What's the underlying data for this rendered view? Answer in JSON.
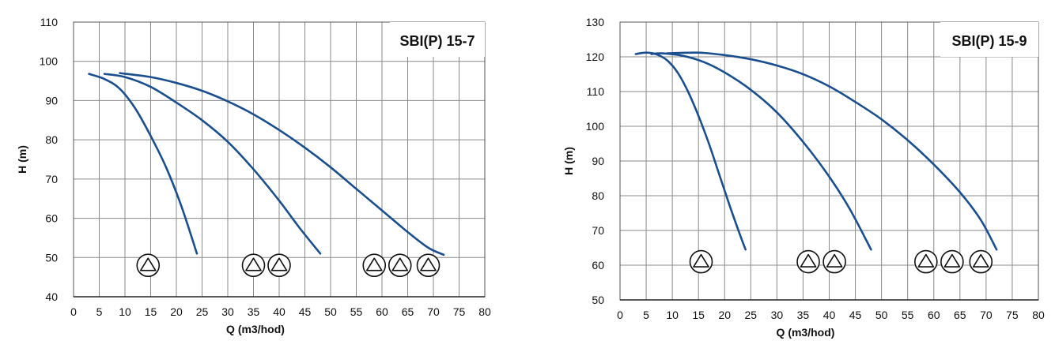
{
  "chart_data": [
    {
      "type": "line",
      "title": "SBI(P) 15-7",
      "xlabel": "Q (m3/hod)",
      "ylabel": "H (m)",
      "xlim": [
        0,
        80
      ],
      "ylim": [
        40,
        110
      ],
      "x_ticks": [
        "0",
        "5",
        "10",
        "15",
        "20",
        "25",
        "30",
        "35",
        "40",
        "45",
        "50",
        "55",
        "60",
        "65",
        "70",
        "75",
        "80"
      ],
      "y_ticks": [
        "40",
        "50",
        "60",
        "70",
        "80",
        "90",
        "100",
        "110"
      ],
      "grid": true,
      "line_color": "#1a4f8f",
      "series": [
        {
          "points": [
            [
              3,
              96.8
            ],
            [
              6,
              95.5
            ],
            [
              9,
              93
            ],
            [
              12,
              88
            ],
            [
              15,
              81
            ],
            [
              18,
              73
            ],
            [
              21,
              63
            ],
            [
              24,
              51
            ]
          ]
        },
        {
          "points": [
            [
              6,
              96.8
            ],
            [
              10,
              96
            ],
            [
              15,
              93.5
            ],
            [
              20,
              89.5
            ],
            [
              25,
              85
            ],
            [
              30,
              79.5
            ],
            [
              35,
              72.5
            ],
            [
              40,
              64.5
            ],
            [
              44,
              57.5
            ],
            [
              48,
              51
            ]
          ]
        },
        {
          "points": [
            [
              9,
              97
            ],
            [
              15,
              96
            ],
            [
              20,
              94.5
            ],
            [
              25,
              92.5
            ],
            [
              30,
              89.8
            ],
            [
              35,
              86.5
            ],
            [
              40,
              82.5
            ],
            [
              45,
              78
            ],
            [
              50,
              73
            ],
            [
              55,
              67.5
            ],
            [
              60,
              62
            ],
            [
              65,
              56.5
            ],
            [
              69,
              52.5
            ],
            [
              72,
              50.7
            ]
          ]
        }
      ],
      "pump_symbol_groups": [
        {
          "x": [
            14.5
          ]
        },
        {
          "x": [
            35,
            40
          ]
        },
        {
          "x": [
            58.5,
            63.5,
            69
          ]
        }
      ],
      "pump_symbol_y": 48
    },
    {
      "type": "line",
      "title": "SBI(P) 15-9",
      "xlabel": "Q (m3/hod)",
      "ylabel": "H (m)",
      "xlim": [
        0,
        80
      ],
      "ylim": [
        50,
        130
      ],
      "x_ticks": [
        "0",
        "5",
        "10",
        "15",
        "20",
        "25",
        "30",
        "35",
        "40",
        "45",
        "50",
        "55",
        "60",
        "65",
        "70",
        "75",
        "80"
      ],
      "y_ticks": [
        "50",
        "60",
        "70",
        "80",
        "90",
        "100",
        "110",
        "120",
        "130"
      ],
      "grid": true,
      "line_color": "#1a4f8f",
      "series": [
        {
          "points": [
            [
              3,
              120.8
            ],
            [
              5,
              121.2
            ],
            [
              7,
              120.7
            ],
            [
              9,
              119
            ],
            [
              11,
              115.5
            ],
            [
              13,
              110
            ],
            [
              15,
              103
            ],
            [
              17,
              95
            ],
            [
              19,
              86
            ],
            [
              21,
              77
            ],
            [
              23,
              68.5
            ],
            [
              24,
              64.5
            ]
          ]
        },
        {
          "points": [
            [
              6,
              120.8
            ],
            [
              8,
              121
            ],
            [
              12,
              120.3
            ],
            [
              16,
              118.5
            ],
            [
              20,
              115.5
            ],
            [
              25,
              110.5
            ],
            [
              30,
              104
            ],
            [
              35,
              95.5
            ],
            [
              40,
              85.5
            ],
            [
              44,
              76
            ],
            [
              48,
              64.5
            ]
          ]
        },
        {
          "points": [
            [
              9,
              121
            ],
            [
              15,
              121.2
            ],
            [
              20,
              120.5
            ],
            [
              25,
              119.3
            ],
            [
              30,
              117.5
            ],
            [
              35,
              115
            ],
            [
              40,
              111.5
            ],
            [
              45,
              107
            ],
            [
              50,
              102
            ],
            [
              55,
              96
            ],
            [
              60,
              89
            ],
            [
              65,
              81
            ],
            [
              69,
              73
            ],
            [
              72,
              64.5
            ]
          ]
        }
      ],
      "pump_symbol_groups": [
        {
          "x": [
            15.5
          ]
        },
        {
          "x": [
            36,
            41
          ]
        },
        {
          "x": [
            58.5,
            63.5,
            69
          ]
        }
      ],
      "pump_symbol_y": 61
    }
  ]
}
